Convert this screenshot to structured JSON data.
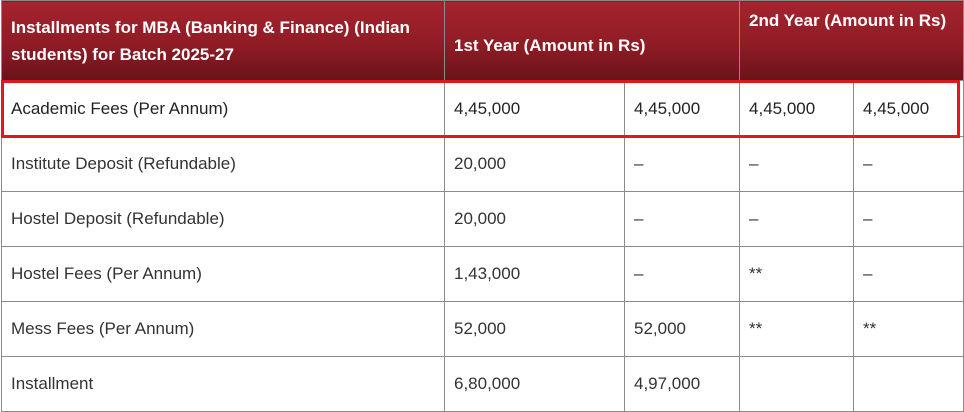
{
  "header": {
    "title": "Installments for MBA (Banking & Finance) (Indian students) for Batch 2025-27",
    "first_year": "1st Year (Amount in Rs)",
    "second_year": "2nd Year (Amount in Rs)"
  },
  "rows": [
    {
      "label": "Academic Fees (Per Annum)",
      "c1": "4,45,000",
      "c2": "4,45,000",
      "c3": "4,45,000",
      "c4": "4,45,000"
    },
    {
      "label": "Institute Deposit (Refundable)",
      "c1": "20,000",
      "c2": "–",
      "c3": "–",
      "c4": "–"
    },
    {
      "label": "Hostel Deposit (Refundable)",
      "c1": "20,000",
      "c2": "–",
      "c3": "–",
      "c4": "–"
    },
    {
      "label": "Hostel Fees (Per Annum)",
      "c1": "1,43,000",
      "c2": "–",
      "c3": "**",
      "c4": "–"
    },
    {
      "label": "Mess Fees (Per Annum)",
      "c1": "52,000",
      "c2": "52,000",
      "c3": "**",
      "c4": "**"
    },
    {
      "label": "Installment",
      "c1": "6,80,000",
      "c2": "4,97,000",
      "c3": "",
      "c4": ""
    }
  ],
  "colors": {
    "header_bg": "#9a1f28",
    "highlight_border": "#e2171e"
  }
}
